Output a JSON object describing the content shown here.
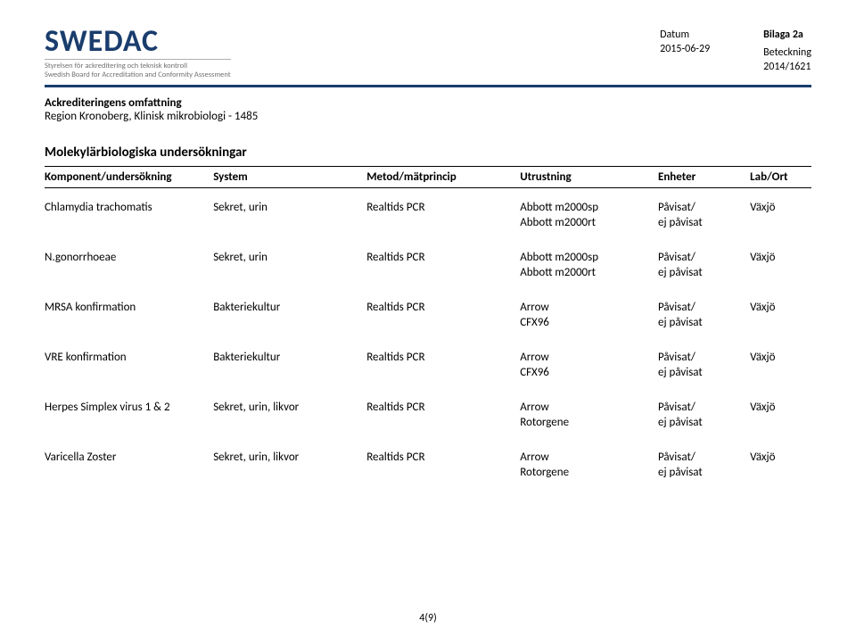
{
  "header": {
    "logo_text": "SWEDAC",
    "logo_sub1": "Styrelsen för ackreditering och teknisk kontroll",
    "logo_sub2": "Swedish Board for Accreditation and Conformity Assessment",
    "bilaga": "Bilaga 2a",
    "datum_label": "Datum",
    "datum_value": "2015-06-29",
    "beteckning_label": "Beteckning",
    "beteckning_value": "2014/1621"
  },
  "scope": {
    "title": "Ackrediteringens omfattning",
    "entity": "Region Kronoberg, Klinisk mikrobiologi - 1485"
  },
  "section_title": "Molekylärbiologiska undersökningar",
  "columns": [
    "Komponent/undersökning",
    "System",
    "Metod/mätprincip",
    "Utrustning",
    "Enheter",
    "Lab/Ort"
  ],
  "colwidths": [
    "22%",
    "20%",
    "20%",
    "18%",
    "12%",
    "8%"
  ],
  "rows": [
    {
      "component": "Chlamydia trachomatis",
      "system": "Sekret, urin",
      "method": "Realtids PCR",
      "equip": [
        "Abbott m2000sp",
        "Abbott m2000rt"
      ],
      "units": [
        "Påvisat/",
        "ej påvisat"
      ],
      "lab": "Växjö"
    },
    {
      "component": "N.gonorrhoeae",
      "system": "Sekret, urin",
      "method": "Realtids PCR",
      "equip": [
        "Abbott m2000sp",
        "Abbott m2000rt"
      ],
      "units": [
        "Påvisat/",
        "ej påvisat"
      ],
      "lab": "Växjö"
    },
    {
      "component": "MRSA konfirmation",
      "system": "Bakteriekultur",
      "method": "Realtids PCR",
      "equip": [
        "Arrow",
        "CFX96"
      ],
      "units": [
        "Påvisat/",
        "ej påvisat"
      ],
      "lab": "Växjö"
    },
    {
      "component": "VRE konfirmation",
      "system": "Bakteriekultur",
      "method": "Realtids PCR",
      "equip": [
        "Arrow",
        "CFX96"
      ],
      "units": [
        "Påvisat/",
        "ej påvisat"
      ],
      "lab": "Växjö"
    },
    {
      "component": "Herpes Simplex virus 1 & 2",
      "system": "Sekret, urin, likvor",
      "method": "Realtids PCR",
      "equip": [
        "Arrow",
        "Rotorgene"
      ],
      "units": [
        "Påvisat/",
        "ej påvisat"
      ],
      "lab": "Växjö"
    },
    {
      "component": "Varicella Zoster",
      "system": "Sekret, urin, likvor",
      "method": "Realtids PCR",
      "equip": [
        "Arrow",
        "Rotorgene"
      ],
      "units": [
        "Påvisat/",
        "ej påvisat"
      ],
      "lab": "Växjö"
    }
  ],
  "page_number": "4(9)",
  "colors": {
    "brand": "#1a3d6d",
    "bar": "#1a3d6d",
    "text": "#000000",
    "muted": "#707070"
  }
}
